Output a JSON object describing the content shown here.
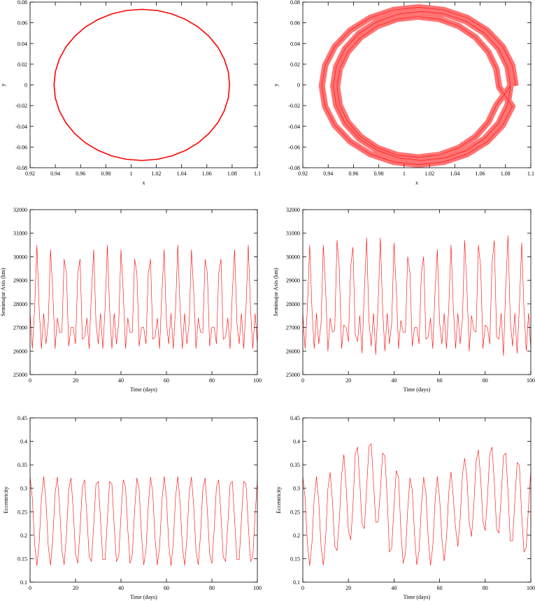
{
  "chart_data": [
    {
      "type": "line",
      "xlabel": "x",
      "ylabel": "y",
      "x": [
        1.078,
        1.077,
        1.0738,
        1.0687,
        1.0617,
        1.0532,
        1.0433,
        1.0323,
        1.0206,
        1.0085,
        0.9964,
        0.9847,
        0.9738,
        0.9638,
        0.9553,
        0.9483,
        0.9432,
        0.94,
        0.939,
        0.94,
        0.9432,
        0.9483,
        0.9553,
        0.9638,
        0.9738,
        0.9847,
        0.9964,
        1.0085,
        1.0206,
        1.0323,
        1.0433,
        1.0532,
        1.0617,
        1.0687,
        1.0738,
        1.077,
        1.078
      ],
      "series": [
        {
          "color": "#ff0000",
          "values": [
            0,
            0.0127,
            0.025,
            0.0365,
            0.0469,
            0.0559,
            0.0632,
            0.0686,
            0.0719,
            0.073,
            0.0719,
            0.0686,
            0.0632,
            0.0559,
            0.0469,
            0.0365,
            0.025,
            0.0127,
            0,
            -0.0127,
            -0.025,
            -0.0365,
            -0.0469,
            -0.0559,
            -0.0632,
            -0.0686,
            -0.0719,
            -0.073,
            -0.0719,
            -0.0686,
            -0.0632,
            -0.0559,
            -0.0469,
            -0.0365,
            -0.025,
            -0.0127,
            0
          ]
        }
      ],
      "xlim": [
        0.92,
        1.1
      ],
      "xticks": [
        0.92,
        0.94,
        0.96,
        0.98,
        1,
        1.02,
        1.04,
        1.06,
        1.08,
        1.1
      ],
      "ylim": [
        -0.08,
        0.08
      ],
      "yticks": [
        -0.08,
        -0.06,
        -0.04,
        -0.02,
        0,
        0.02,
        0.04,
        0.06,
        0.08
      ]
    },
    {
      "type": "line",
      "xlabel": "x",
      "ylabel": "y",
      "x": [
        1.088,
        1.0854,
        1.0778,
        1.0656,
        1.0498,
        1.0313,
        1.0115,
        0.9917,
        0.9732,
        0.9574,
        0.9452,
        0.9376,
        0.935,
        0.9376,
        0.9452,
        0.9574,
        0.9732,
        0.9917,
        1.0115,
        1.0313,
        1.0498,
        1.0656,
        1.0778,
        1.0854,
        1.075,
        1.0728,
        1.0664,
        1.0562,
        1.043,
        1.0276,
        1.011,
        0.9944,
        0.979,
        0.9658,
        0.9556,
        0.9492,
        0.947,
        0.9492,
        0.9556,
        0.9658,
        0.979,
        0.9944,
        1.011,
        1.0276,
        1.043,
        1.0562,
        1.0664,
        1.0728,
        1.084,
        1.0816,
        1.0746,
        1.0635,
        1.049,
        1.0321,
        1.014,
        0.9959,
        0.979,
        0.9645,
        0.9534,
        0.9464,
        0.944,
        0.9464,
        0.9534,
        0.9645,
        0.979,
        0.9959,
        1.014,
        1.0321,
        1.049,
        1.0635,
        1.0746,
        1.0816,
        1.084
      ],
      "series": [
        {
          "color": "#ff0000",
          "values": [
            -0.001,
            0.0187,
            0.037,
            0.0527,
            0.0648,
            0.0724,
            0.075,
            0.0724,
            0.0648,
            0.0527,
            0.037,
            0.0187,
            -0.001,
            -0.0207,
            -0.039,
            -0.0547,
            -0.0668,
            -0.0744,
            -0.077,
            -0.0744,
            -0.0668,
            -0.0547,
            -0.039,
            -0.0207,
            -0.002,
            0.0156,
            0.032,
            0.0461,
            0.0569,
            0.0637,
            0.066,
            0.0637,
            0.0569,
            0.0461,
            0.032,
            0.0156,
            -0.002,
            -0.0196,
            -0.036,
            -0.0501,
            -0.0609,
            -0.0677,
            -0.07,
            -0.0677,
            -0.0609,
            -0.0501,
            -0.036,
            -0.0196,
            -0.001,
            0.0176,
            0.035,
            0.0499,
            0.0614,
            0.0686,
            0.071,
            0.0686,
            0.0614,
            0.0499,
            0.035,
            0.0176,
            -0.001,
            -0.0196,
            -0.037,
            -0.0519,
            -0.0634,
            -0.0706,
            -0.073,
            -0.0706,
            -0.0634,
            -0.0519,
            -0.037,
            -0.0196,
            -0.001
          ]
        }
      ],
      "xlim": [
        0.92,
        1.1
      ],
      "xticks": [
        0.92,
        0.94,
        0.96,
        0.98,
        1,
        1.02,
        1.04,
        1.06,
        1.08,
        1.1
      ],
      "ylim": [
        -0.08,
        0.08
      ],
      "yticks": [
        -0.08,
        -0.06,
        -0.04,
        -0.02,
        0,
        0.02,
        0.04,
        0.06,
        0.08
      ]
    },
    {
      "type": "line",
      "xlabel": "Time (days)",
      "ylabel": "Semimajor Axis (km)",
      "x": [
        0,
        1,
        2,
        3,
        4,
        5,
        6,
        7,
        8,
        9,
        10,
        11,
        12,
        13,
        14,
        15,
        16,
        17,
        18,
        19,
        20,
        21,
        22,
        23,
        24,
        25,
        26,
        27,
        28,
        29,
        30,
        31,
        32,
        33,
        34,
        35,
        36,
        37,
        38,
        39,
        40,
        41,
        42,
        43,
        44,
        45,
        46,
        47,
        48,
        49,
        50,
        51,
        52,
        53,
        54,
        55,
        56,
        57,
        58,
        59,
        60,
        61,
        62,
        63,
        64,
        65,
        66,
        67,
        68,
        69,
        70,
        71,
        72,
        73,
        74,
        75,
        76,
        77,
        78,
        79,
        80,
        81,
        82,
        83,
        84,
        85,
        86,
        87,
        88,
        89,
        90,
        91,
        92,
        93,
        94,
        95,
        96,
        97,
        98,
        99,
        100
      ],
      "series": [
        {
          "color": "#ff0000",
          "values": [
            27600,
            26100,
            27800,
            30500,
            27800,
            26100,
            27600,
            26300,
            27200,
            30300,
            28500,
            26100,
            27400,
            26800,
            26800,
            29900,
            29300,
            26200,
            27000,
            27000,
            26300,
            29300,
            29900,
            26500,
            26600,
            27400,
            26100,
            28500,
            30300,
            27200,
            26300,
            27600,
            26100,
            27800,
            30500,
            27800,
            26100,
            27600,
            26300,
            27200,
            30300,
            28500,
            26100,
            27400,
            26800,
            26800,
            29900,
            29300,
            26200,
            27000,
            27000,
            26300,
            29300,
            29900,
            26500,
            26600,
            27400,
            26100,
            28500,
            30300,
            27200,
            26300,
            27600,
            26100,
            27800,
            30500,
            27800,
            26100,
            27600,
            26300,
            27200,
            30300,
            28500,
            26100,
            27400,
            26800,
            26800,
            29900,
            29300,
            26200,
            27000,
            27000,
            26300,
            29300,
            29900,
            26500,
            26600,
            27400,
            26100,
            28500,
            30300,
            27200,
            26300,
            27600,
            26100,
            27800,
            30500,
            27800,
            26100,
            27600,
            26300
          ]
        }
      ],
      "xlim": [
        0,
        100
      ],
      "xticks": [
        0,
        20,
        40,
        60,
        80,
        100
      ],
      "ylim": [
        25000,
        32000
      ],
      "yticks": [
        25000,
        26000,
        27000,
        28000,
        29000,
        30000,
        31000,
        32000
      ]
    },
    {
      "type": "line",
      "xlabel": "Time (days)",
      "ylabel": "Semimajor Axis (km)",
      "x": [
        0,
        1,
        2,
        3,
        4,
        5,
        6,
        7,
        8,
        9,
        10,
        11,
        12,
        13,
        14,
        15,
        16,
        17,
        18,
        19,
        20,
        21,
        22,
        23,
        24,
        25,
        26,
        27,
        28,
        29,
        30,
        31,
        32,
        33,
        34,
        35,
        36,
        37,
        38,
        39,
        40,
        41,
        42,
        43,
        44,
        45,
        46,
        47,
        48,
        49,
        50,
        51,
        52,
        53,
        54,
        55,
        56,
        57,
        58,
        59,
        60,
        61,
        62,
        63,
        64,
        65,
        66,
        67,
        68,
        69,
        70,
        71,
        72,
        73,
        74,
        75,
        76,
        77,
        78,
        79,
        80,
        81,
        82,
        83,
        84,
        85,
        86,
        87,
        88,
        89,
        90,
        91,
        92,
        93,
        94,
        95,
        96,
        97,
        98,
        99,
        100
      ],
      "series": [
        {
          "color": "#ff0000",
          "values": [
            27600,
            26100,
            27800,
            30500,
            27800,
            26100,
            27600,
            26300,
            27200,
            30500,
            28600,
            26000,
            27400,
            26800,
            26900,
            30700,
            29500,
            26100,
            27100,
            27000,
            26400,
            29600,
            30400,
            26700,
            26400,
            27500,
            25900,
            28600,
            30800,
            27300,
            26200,
            27600,
            25850,
            27900,
            30800,
            27800,
            26000,
            27600,
            26300,
            27200,
            30600,
            28600,
            26100,
            27300,
            26800,
            26800,
            30000,
            29300,
            26200,
            27000,
            27000,
            26300,
            29300,
            30000,
            26500,
            26600,
            27400,
            26100,
            28500,
            30300,
            27200,
            26300,
            27600,
            26100,
            27800,
            30500,
            27900,
            26100,
            27600,
            26300,
            27300,
            30700,
            28600,
            26000,
            27500,
            26900,
            26800,
            30500,
            29600,
            26100,
            27100,
            27000,
            26300,
            29700,
            30700,
            26600,
            26500,
            27600,
            25800,
            28700,
            30900,
            27300,
            26200,
            27600,
            25900,
            27900,
            30600,
            27800,
            26000,
            27600,
            26100
          ]
        }
      ],
      "xlim": [
        0,
        100
      ],
      "xticks": [
        0,
        20,
        40,
        60,
        80,
        100
      ],
      "ylim": [
        25000,
        32000
      ],
      "yticks": [
        25000,
        26000,
        27000,
        28000,
        29000,
        30000,
        31000,
        32000
      ]
    },
    {
      "type": "line",
      "xlabel": "Time (days)",
      "ylabel": "Eccentricity",
      "x": [
        0,
        1,
        2,
        3,
        4,
        5,
        6,
        7,
        8,
        9,
        10,
        11,
        12,
        13,
        14,
        15,
        16,
        17,
        18,
        19,
        20,
        21,
        22,
        23,
        24,
        25,
        26,
        27,
        28,
        29,
        30,
        31,
        32,
        33,
        34,
        35,
        36,
        37,
        38,
        39,
        40,
        41,
        42,
        43,
        44,
        45,
        46,
        47,
        48,
        49,
        50,
        51,
        52,
        53,
        54,
        55,
        56,
        57,
        58,
        59,
        60,
        61,
        62,
        63,
        64,
        65,
        66,
        67,
        68,
        69,
        70,
        71,
        72,
        73,
        74,
        75,
        76,
        77,
        78,
        79,
        80,
        81,
        82,
        83,
        84,
        85,
        86,
        87,
        88,
        89,
        90,
        91,
        92,
        93,
        94,
        95,
        96,
        97,
        98,
        99,
        100
      ],
      "series": [
        {
          "color": "#ff0000",
          "values": [
            0.325,
            0.279,
            0.183,
            0.135,
            0.183,
            0.28,
            0.325,
            0.271,
            0.176,
            0.136,
            0.193,
            0.289,
            0.324,
            0.262,
            0.167,
            0.137,
            0.202,
            0.297,
            0.322,
            0.253,
            0.16,
            0.14,
            0.212,
            0.303,
            0.318,
            0.242,
            0.154,
            0.144,
            0.222,
            0.309,
            0.315,
            0.233,
            0.148,
            0.148,
            0.233,
            0.315,
            0.309,
            0.222,
            0.144,
            0.154,
            0.242,
            0.318,
            0.303,
            0.212,
            0.14,
            0.16,
            0.253,
            0.322,
            0.297,
            0.202,
            0.137,
            0.167,
            0.262,
            0.324,
            0.289,
            0.193,
            0.136,
            0.176,
            0.271,
            0.325,
            0.279,
            0.183,
            0.135,
            0.183,
            0.28,
            0.325,
            0.271,
            0.176,
            0.136,
            0.193,
            0.289,
            0.324,
            0.262,
            0.167,
            0.137,
            0.202,
            0.297,
            0.322,
            0.253,
            0.16,
            0.14,
            0.212,
            0.303,
            0.318,
            0.242,
            0.154,
            0.144,
            0.222,
            0.309,
            0.315,
            0.233,
            0.148,
            0.148,
            0.233,
            0.315,
            0.309,
            0.222,
            0.144,
            0.154,
            0.242,
            0.318
          ]
        }
      ],
      "xlim": [
        0,
        100
      ],
      "xticks": [
        0,
        20,
        40,
        60,
        80,
        100
      ],
      "ylim": [
        0.1,
        0.45
      ],
      "yticks": [
        0.1,
        0.15,
        0.2,
        0.25,
        0.3,
        0.35,
        0.4,
        0.45
      ]
    },
    {
      "type": "line",
      "xlabel": "Time (days)",
      "ylabel": "Eccentricity",
      "x": [
        0,
        1,
        2,
        3,
        4,
        5,
        6,
        7,
        8,
        9,
        10,
        11,
        12,
        13,
        14,
        15,
        16,
        17,
        18,
        19,
        20,
        21,
        22,
        23,
        24,
        25,
        26,
        27,
        28,
        29,
        30,
        31,
        32,
        33,
        34,
        35,
        36,
        37,
        38,
        39,
        40,
        41,
        42,
        43,
        44,
        45,
        46,
        47,
        48,
        49,
        50,
        51,
        52,
        53,
        54,
        55,
        56,
        57,
        58,
        59,
        60,
        61,
        62,
        63,
        64,
        65,
        66,
        67,
        68,
        69,
        70,
        71,
        72,
        73,
        74,
        75,
        76,
        77,
        78,
        79,
        80,
        81,
        82,
        83,
        84,
        85,
        86,
        87,
        88,
        89,
        90,
        91,
        92,
        93,
        94,
        95,
        96,
        97,
        98,
        99,
        100
      ],
      "series": [
        {
          "color": "#ff0000",
          "values": [
            0.325,
            0.279,
            0.183,
            0.135,
            0.183,
            0.28,
            0.325,
            0.271,
            0.176,
            0.136,
            0.193,
            0.299,
            0.334,
            0.272,
            0.177,
            0.167,
            0.232,
            0.327,
            0.372,
            0.303,
            0.21,
            0.19,
            0.262,
            0.373,
            0.388,
            0.312,
            0.224,
            0.214,
            0.302,
            0.389,
            0.395,
            0.313,
            0.228,
            0.228,
            0.293,
            0.375,
            0.369,
            0.282,
            0.164,
            0.174,
            0.262,
            0.338,
            0.323,
            0.212,
            0.14,
            0.16,
            0.253,
            0.322,
            0.297,
            0.202,
            0.137,
            0.167,
            0.262,
            0.324,
            0.289,
            0.193,
            0.136,
            0.176,
            0.271,
            0.325,
            0.279,
            0.193,
            0.145,
            0.193,
            0.29,
            0.335,
            0.281,
            0.216,
            0.176,
            0.233,
            0.329,
            0.364,
            0.322,
            0.227,
            0.197,
            0.262,
            0.357,
            0.382,
            0.323,
            0.23,
            0.21,
            0.282,
            0.373,
            0.388,
            0.312,
            0.214,
            0.204,
            0.282,
            0.369,
            0.375,
            0.293,
            0.188,
            0.188,
            0.273,
            0.355,
            0.349,
            0.242,
            0.164,
            0.174,
            0.262,
            0.338
          ]
        }
      ],
      "xlim": [
        0,
        100
      ],
      "xticks": [
        0,
        20,
        40,
        60,
        80,
        100
      ],
      "ylim": [
        0.1,
        0.45
      ],
      "yticks": [
        0.1,
        0.15,
        0.2,
        0.25,
        0.3,
        0.35,
        0.4,
        0.45
      ]
    }
  ]
}
